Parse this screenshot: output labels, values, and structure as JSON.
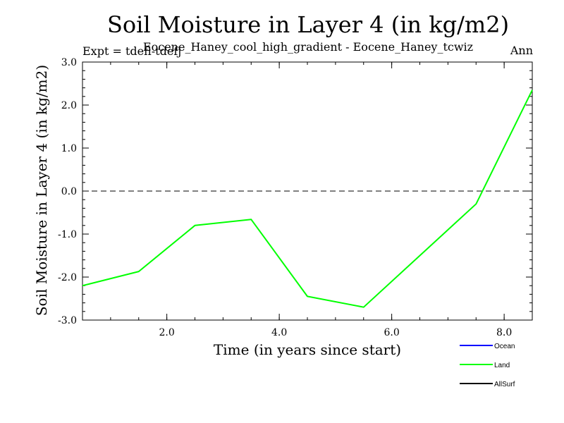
{
  "chart_data": {
    "type": "line",
    "title": "Soil Moisture in Layer 4 (in kg/m2)",
    "subtitle": "Eocene_Haney_cool_high_gradient - Eocene_Haney_tcwiz",
    "expt_label": "Expt = tdefl-tdefj",
    "season_label": "Ann",
    "xlabel": "Time (in years since start)",
    "ylabel": "Soil Moisture in Layer 4 (in kg/m2)",
    "xlim": [
      0.5,
      8.5
    ],
    "ylim": [
      -3.0,
      3.0
    ],
    "x_ticks": [
      2.0,
      4.0,
      6.0,
      8.0
    ],
    "x_tick_labels": [
      "2.0",
      "4.0",
      "6.0",
      "8.0"
    ],
    "x_minor_step": 0.5,
    "y_ticks": [
      3.0,
      2.0,
      1.0,
      0.0,
      -1.0,
      -2.0,
      -3.0
    ],
    "y_tick_labels": [
      "3.0",
      "2.0",
      "1.0",
      "0.0",
      "-1.0",
      "-2.0",
      "-3.0"
    ],
    "y_minor_step": 0.2,
    "zero_line": true,
    "series": [
      {
        "name": "Land",
        "color": "#00ff00",
        "x": [
          0.5,
          1.5,
          2.5,
          3.5,
          4.5,
          5.5,
          7.5,
          8.5
        ],
        "values": [
          -2.2,
          -1.87,
          -0.8,
          -0.66,
          -2.45,
          -2.7,
          -0.3,
          2.35
        ]
      }
    ],
    "legend": {
      "placement": "bottom-right",
      "entries": [
        {
          "name": "Ocean",
          "color": "#0000ff"
        },
        {
          "name": "Land",
          "color": "#00ff00"
        },
        {
          "name": "AllSurf",
          "color": "#000000"
        }
      ]
    }
  }
}
